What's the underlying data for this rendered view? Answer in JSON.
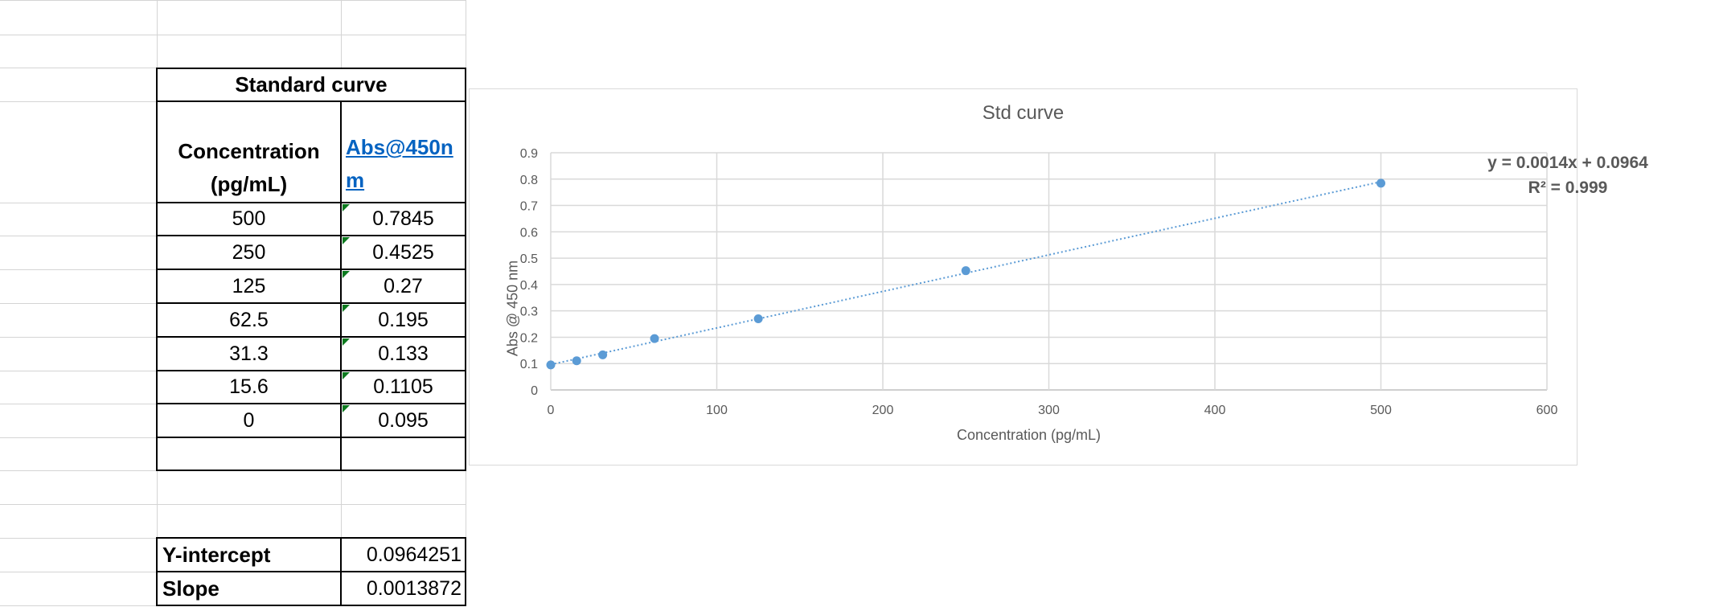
{
  "table": {
    "title": "Standard curve",
    "header_conc_line1": "Concentration",
    "header_conc_line2": "(pg/mL)",
    "header_abs": "Abs@450nm",
    "rows": [
      {
        "conc": "500",
        "abs": "0.7845"
      },
      {
        "conc": "250",
        "abs": "0.4525"
      },
      {
        "conc": "125",
        "abs": "0.27"
      },
      {
        "conc": "62.5",
        "abs": "0.195"
      },
      {
        "conc": "31.3",
        "abs": "0.133"
      },
      {
        "conc": "15.6",
        "abs": "0.1105"
      },
      {
        "conc": "0",
        "abs": "0.095"
      }
    ],
    "yintercept_label": "Y-intercept",
    "yintercept_value": "0.0964251",
    "slope_label": "Slope",
    "slope_value": "0.0013872"
  },
  "colors": {
    "marker": "#5b9bd5",
    "trendline": "#5b9bd5",
    "gridline": "#d9d9d9",
    "hyperlink": "#0563c1",
    "error_indicator": "#0b7a1e"
  },
  "chart_data": {
    "type": "scatter",
    "title": "Std curve",
    "xlabel": "Concentration (pg/mL)",
    "ylabel": "Abs @ 450 nm",
    "xlim": [
      0,
      600
    ],
    "ylim": [
      0,
      0.9
    ],
    "xticks": [
      "0",
      "100",
      "200",
      "300",
      "400",
      "500",
      "600"
    ],
    "yticks": [
      "0",
      "0.1",
      "0.2",
      "0.3",
      "0.4",
      "0.5",
      "0.6",
      "0.7",
      "0.8",
      "0.9"
    ],
    "grid": true,
    "legend": "none",
    "series": [
      {
        "x": [
          500,
          250,
          125,
          62.5,
          31.3,
          15.6,
          0
        ],
        "y": [
          0.7845,
          0.4525,
          0.27,
          0.195,
          0.133,
          0.1105,
          0.095
        ]
      }
    ],
    "trendline": {
      "type": "linear",
      "slope": 0.0013872,
      "intercept": 0.0964251,
      "equation_label": "y = 0.0014x + 0.0964",
      "r2_label": "R² = 0.999"
    }
  }
}
